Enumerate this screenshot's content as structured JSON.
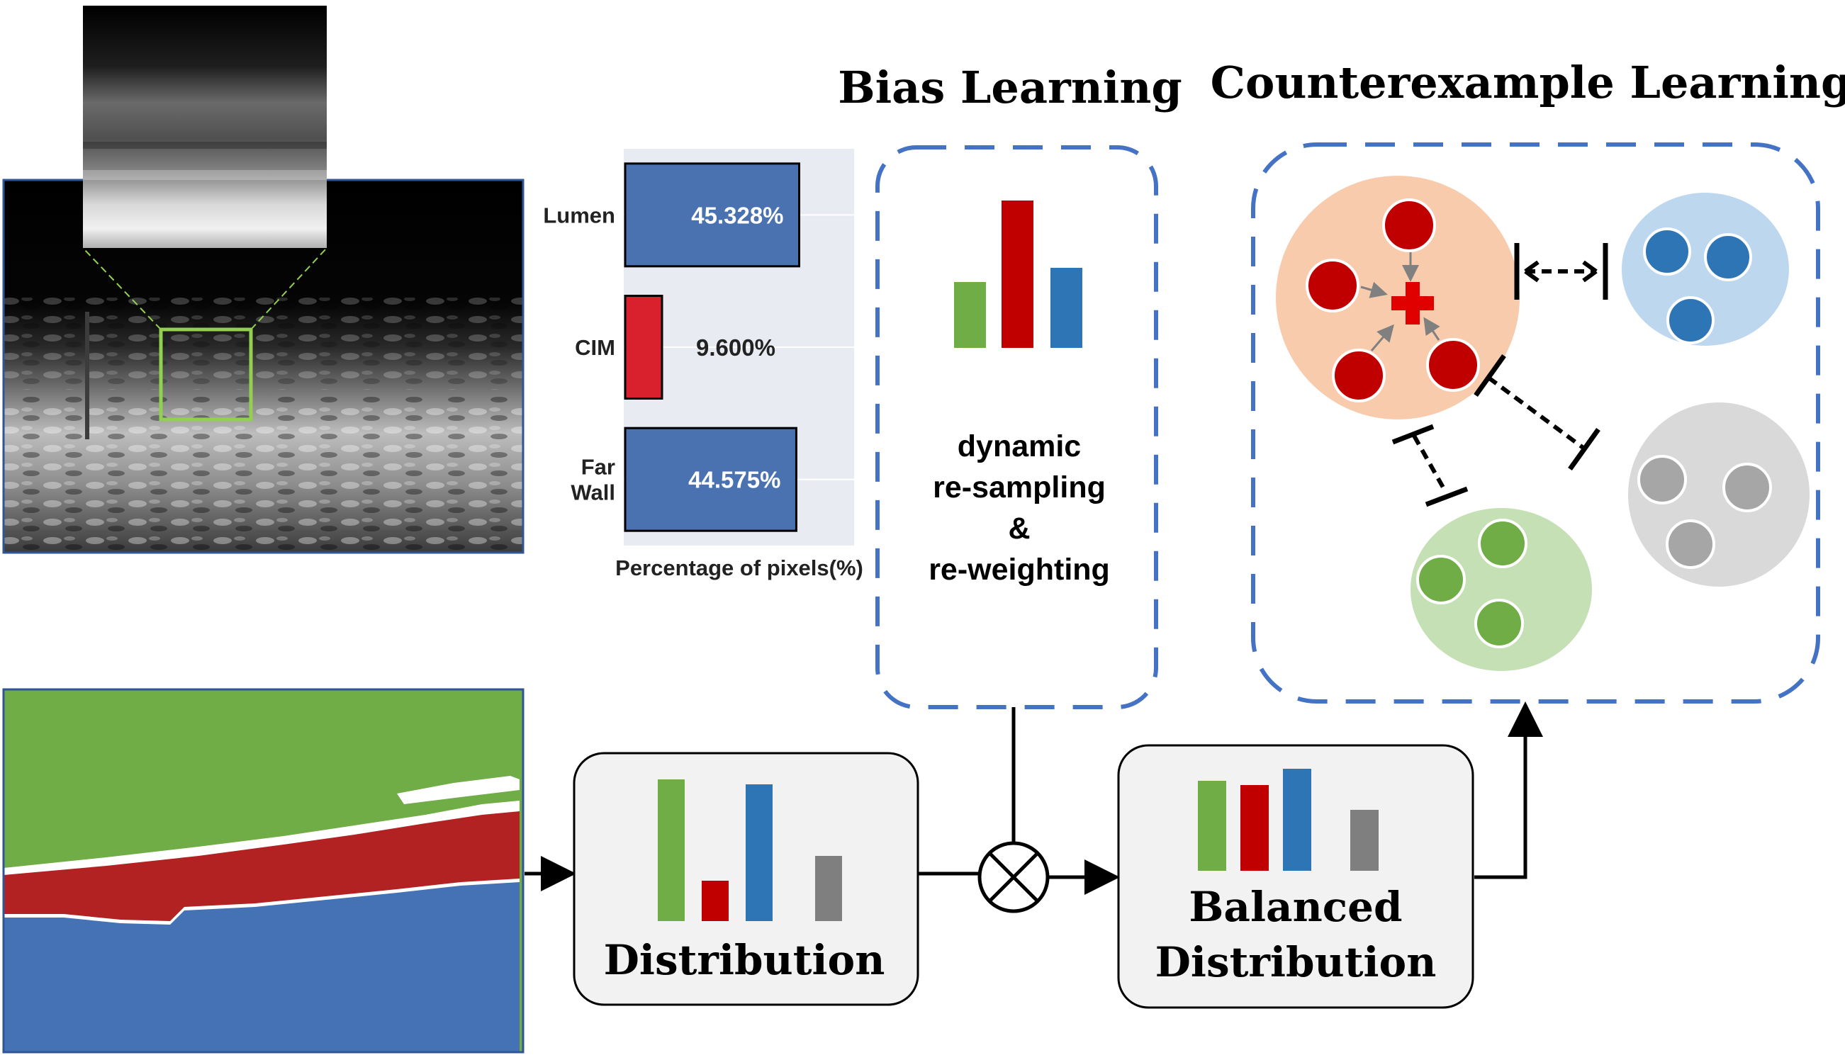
{
  "headings": {
    "bias_learning": "Bias Learning",
    "counterexample_learning": "Counterexample Learning"
  },
  "bias_box": {
    "line1": "dynamic",
    "line2": "re-sampling",
    "line3": "&",
    "line4": "re-weighting"
  },
  "distribution_box": {
    "label": "Distribution"
  },
  "balanced_box": {
    "line1": "Balanced",
    "line2": "Distribution"
  },
  "chart_data": {
    "type": "bar",
    "orientation": "horizontal",
    "categories": [
      "Lumen",
      "CIM",
      "Far Wall"
    ],
    "values": [
      45.328,
      9.6,
      44.575
    ],
    "value_labels": [
      "45.328%",
      "9.600%",
      "44.575%"
    ],
    "category_label_lines": [
      [
        "Lumen"
      ],
      [
        "CIM"
      ],
      [
        "Far",
        "Wall"
      ]
    ],
    "bar_colors": [
      "#4a72b0",
      "#d9212d",
      "#4a72b0"
    ],
    "xlabel": "Percentage of pixels(%)",
    "grid": true
  },
  "colors": {
    "green": "#70ad47",
    "red": "#c00000",
    "blue": "#2e75b6",
    "gray": "#7f7f7f",
    "dashed_border": "#4472c4",
    "mask_green": "#70ad47",
    "mask_red": "#b22222",
    "mask_blue": "#4472b4",
    "orange_cluster": "#f8cbad",
    "blue_cluster": "#bdd7ee",
    "gray_cluster": "#d9d9d9",
    "green_cluster": "#c5e0b4"
  }
}
